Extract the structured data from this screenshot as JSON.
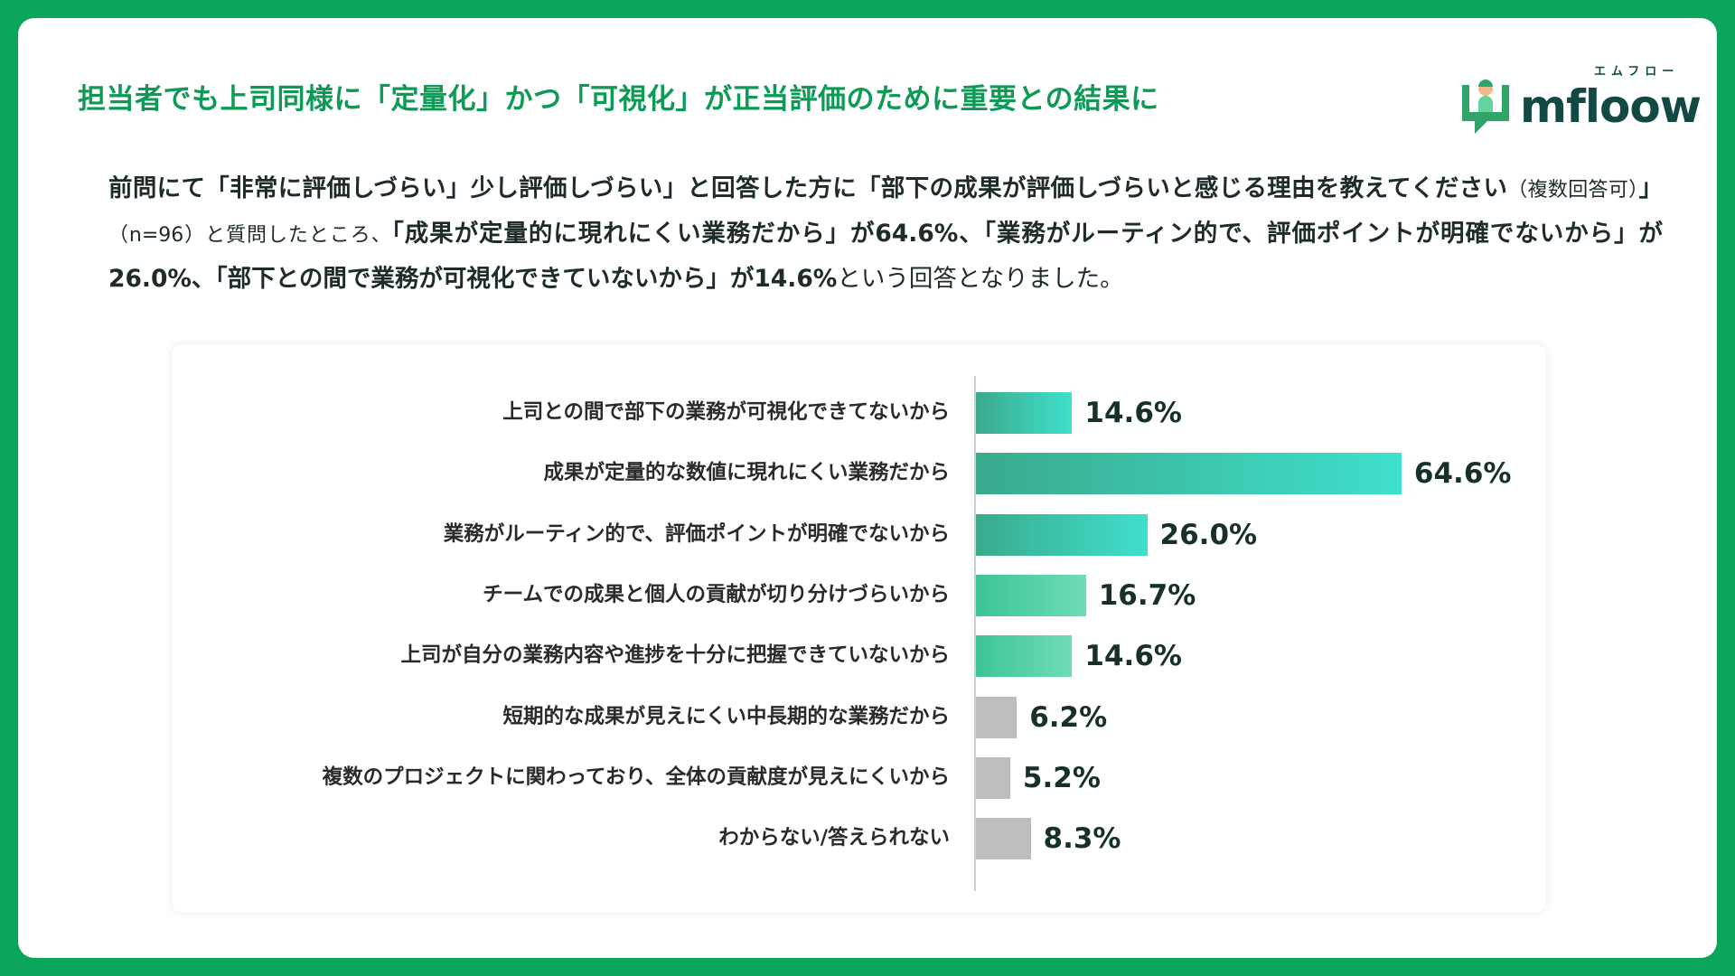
{
  "title": "担当者でも上司同様に「定量化」かつ「可視化」が正当評価のために重要との結果に",
  "logo": {
    "text": "mfloow",
    "kana": "エムフロー"
  },
  "intro": {
    "p1": "前問にて「非常に評価しづらい」少し評価しづらい」と回答した方に「部下の成果が評価しづらいと感じる理由を教えてください",
    "p2": "（複数回答可）",
    "p3": "」",
    "p4": "（n=96）と質問したところ、",
    "p5": "「成果が定量的に現れにくい業務だから」が64.6%、「業務がルーティン的で、評価ポイントが明確でないから」が26.0%、「部下との間で業務が可視化できていないから」が14.6%",
    "p6": "という回答となりました。"
  },
  "colors": {
    "dark_start": "#3aaa8c",
    "dark_end": "#3fe0cc",
    "light_start": "#3cc596",
    "light_end": "#6fdcb8",
    "gray": "#bdbdbd"
  },
  "chart_data": {
    "type": "bar",
    "orientation": "horizontal",
    "categories": [
      "上司との間で部下の業務が可視化できてないから",
      "成果が定量的な数値に現れにくい業務だから",
      "業務がルーティン的で、評価ポイントが明確でないから",
      "チームでの成果と個人の貢献が切り分けづらいから",
      "上司が自分の業務内容や進捗を十分に把握できていないから",
      "短期的な成果が見えにくい中長期的な業務だから",
      "複数のプロジェクトに関わっており、全体の貢献度が見えにくいから",
      "わからない/答えられない"
    ],
    "values": [
      14.6,
      64.6,
      26.0,
      16.7,
      14.6,
      6.2,
      5.2,
      8.3
    ],
    "value_labels": [
      "14.6%",
      "64.6%",
      "26.0%",
      "16.7%",
      "14.6%",
      "6.2%",
      "5.2%",
      "8.3%"
    ],
    "styles": [
      "dark",
      "dark",
      "dark",
      "light",
      "light",
      "gray",
      "gray",
      "gray"
    ],
    "unit": "%",
    "grid": false
  }
}
